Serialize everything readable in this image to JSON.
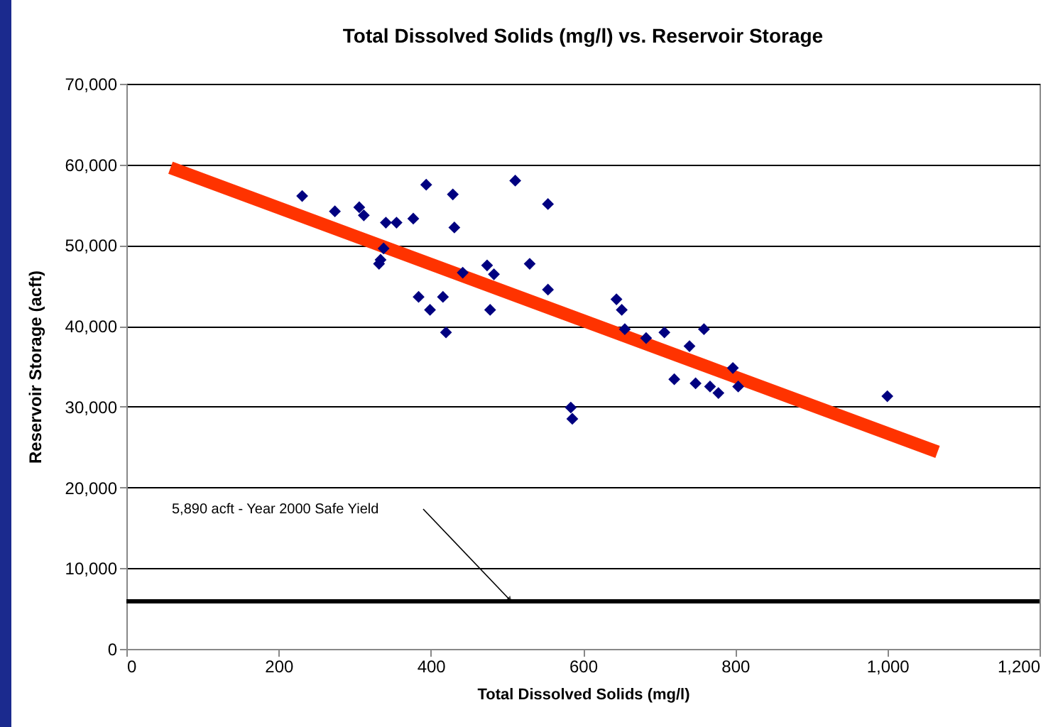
{
  "chart_data": {
    "type": "scatter",
    "title": "Total Dissolved Solids (mg/l) vs. Reservoir Storage",
    "xlabel": "Total Dissolved Solids (mg/l)",
    "ylabel": "Reservoir Storage (acft)",
    "xlim": [
      0,
      1200
    ],
    "xticks": [
      0,
      200,
      400,
      600,
      800,
      {
        "value": 1000,
        "label": "1,000"
      },
      {
        "value": 1200,
        "label": "1,200"
      }
    ],
    "ylim": [
      0,
      70000
    ],
    "yticks": [
      0,
      {
        "value": 10000,
        "label": "10,000"
      },
      {
        "value": 20000,
        "label": "20,000"
      },
      {
        "value": 30000,
        "label": "30,000"
      },
      {
        "value": 40000,
        "label": "40,000"
      },
      {
        "value": 50000,
        "label": "50,000"
      },
      {
        "value": 60000,
        "label": "60,000"
      },
      {
        "value": 70000,
        "label": "70,000"
      }
    ],
    "grid": "y",
    "marker": "diamond",
    "series": [
      {
        "color": "#000080",
        "x": [
          231,
          274,
          306,
          312,
          341,
          355,
          377,
          394,
          429,
          511,
          554,
          431,
          338,
          332,
          334,
          384,
          399,
          416,
          420,
          474,
          483,
          442,
          478,
          530,
          554,
          644,
          651,
          655,
          683,
          707,
          759,
          740,
          720,
          748,
          767,
          778,
          797,
          804,
          584,
          586,
          1000
        ],
        "values": [
          56100,
          54200,
          54700,
          53700,
          52800,
          52800,
          53300,
          57500,
          56300,
          58000,
          55100,
          52200,
          49600,
          47700,
          48200,
          43600,
          42000,
          43600,
          39200,
          47500,
          46400,
          46600,
          42000,
          47700,
          44500,
          43300,
          42000,
          39600,
          38500,
          39200,
          39600,
          37500,
          33400,
          32900,
          32500,
          31700,
          34800,
          32500,
          29900,
          28500,
          31300
        ]
      },
      {
        "type": "line",
        "marker": "none",
        "color": "#ff3300",
        "x": [
          58,
          1066
        ],
        "values": [
          59600,
          24400
        ]
      }
    ],
    "ref_lines": [
      {
        "axis": "y",
        "value": 5890,
        "label": "5,890 acft - Year 2000 Safe Yield",
        "color": "#000000"
      }
    ]
  }
}
